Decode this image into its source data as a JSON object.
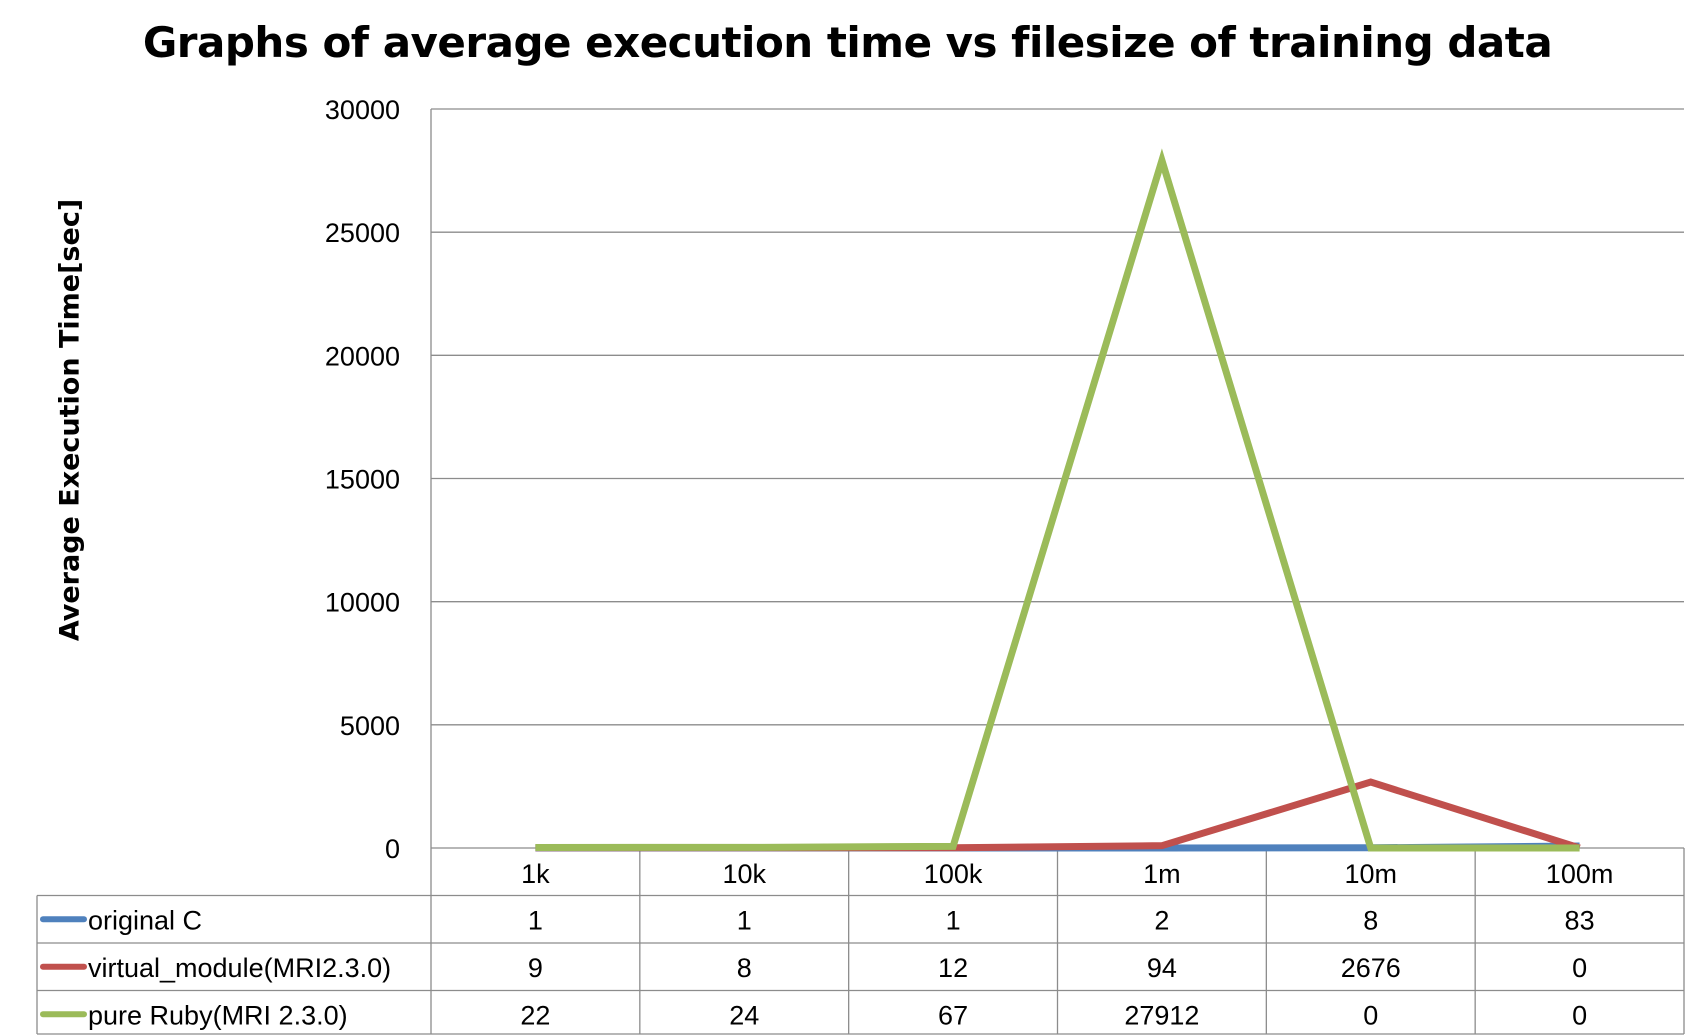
{
  "chart_data": {
    "type": "line",
    "title": "Graphs of average execution time vs filesize of training data",
    "xlabel": "",
    "ylabel": "Average Execution Time[sec]",
    "categories": [
      "1k",
      "10k",
      "100k",
      "1m",
      "10m",
      "100m"
    ],
    "ylim": [
      0,
      30000
    ],
    "yticks": [
      "0",
      "5000",
      "10000",
      "15000",
      "20000",
      "25000",
      "30000"
    ],
    "grid": true,
    "legend": "data-table",
    "series": [
      {
        "name": "original C",
        "color": "#4F81BD",
        "values": [
          1,
          1,
          1,
          2,
          8,
          83
        ]
      },
      {
        "name": "virtual_module(MRI2.3.0)",
        "color": "#C0504D",
        "values": [
          9,
          8,
          12,
          94,
          2676,
          0
        ]
      },
      {
        "name": "pure Ruby(MRI 2.3.0)",
        "color": "#9BBB59",
        "values": [
          22,
          24,
          67,
          27912,
          0,
          0
        ]
      }
    ]
  }
}
